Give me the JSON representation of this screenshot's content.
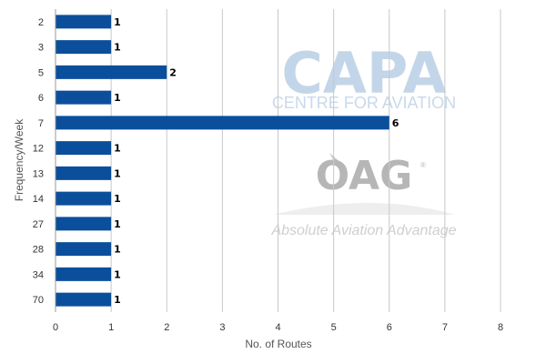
{
  "chart_data": {
    "type": "bar",
    "orientation": "horizontal",
    "categories": [
      "2",
      "3",
      "5",
      "6",
      "7",
      "12",
      "13",
      "14",
      "27",
      "28",
      "34",
      "70"
    ],
    "values": [
      1,
      1,
      2,
      1,
      6,
      1,
      1,
      1,
      1,
      1,
      1,
      1
    ],
    "xlabel": "No. of Routes",
    "ylabel": "Frequency/Week",
    "xlim": [
      0,
      8
    ],
    "xticks": [
      "0",
      "1",
      "2",
      "3",
      "4",
      "5",
      "6",
      "7",
      "8"
    ],
    "grid": "vertical",
    "bar_color": "#0b4f9c",
    "data_labels": true
  },
  "watermarks": {
    "capa_logo": "CAPA",
    "capa_subtitle": "CENTRE FOR AVIATION",
    "oag_logo": "OAG",
    "oag_tagline": "Absolute Aviation Advantage"
  }
}
